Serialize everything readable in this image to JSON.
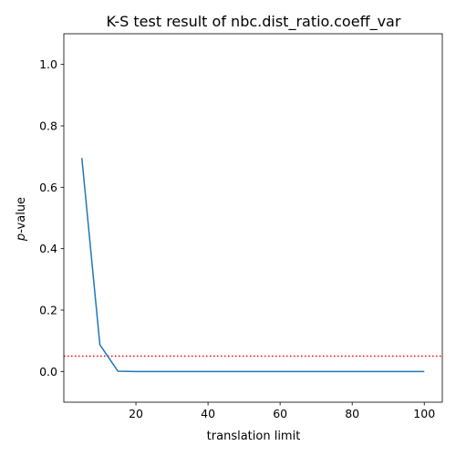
{
  "chart_data": {
    "type": "line",
    "title": "K-S test result of nbc.dist_ratio.coeff_var",
    "xlabel": "translation limit",
    "ylabel_italic": "p",
    "ylabel_rest": "-value",
    "xlim": [
      0,
      105
    ],
    "ylim": [
      -0.1,
      1.1
    ],
    "x_ticks": [
      20,
      40,
      60,
      80,
      100
    ],
    "y_ticks": [
      0.0,
      0.2,
      0.4,
      0.6,
      0.8,
      1.0
    ],
    "x_tick_labels": [
      "20",
      "40",
      "60",
      "80",
      "100"
    ],
    "y_tick_labels": [
      "0.0",
      "0.2",
      "0.4",
      "0.6",
      "0.8",
      "1.0"
    ],
    "series": [
      {
        "color": "#1f77b4",
        "x": [
          5,
          10,
          15,
          20,
          25,
          30,
          35,
          40,
          45,
          50,
          55,
          60,
          65,
          70,
          75,
          80,
          85,
          90,
          95,
          100
        ],
        "y": [
          0.695,
          0.087,
          0.001,
          0.0,
          0.0,
          0.0,
          0.0,
          0.0,
          0.0,
          0.0,
          0.0,
          0.0,
          0.0,
          0.0,
          0.0,
          0.0,
          0.0,
          0.0,
          0.0,
          0.0
        ]
      }
    ],
    "threshold": {
      "y": 0.05,
      "color": "#ff0000",
      "style": "dotted"
    },
    "grid": false,
    "legend": "none"
  }
}
